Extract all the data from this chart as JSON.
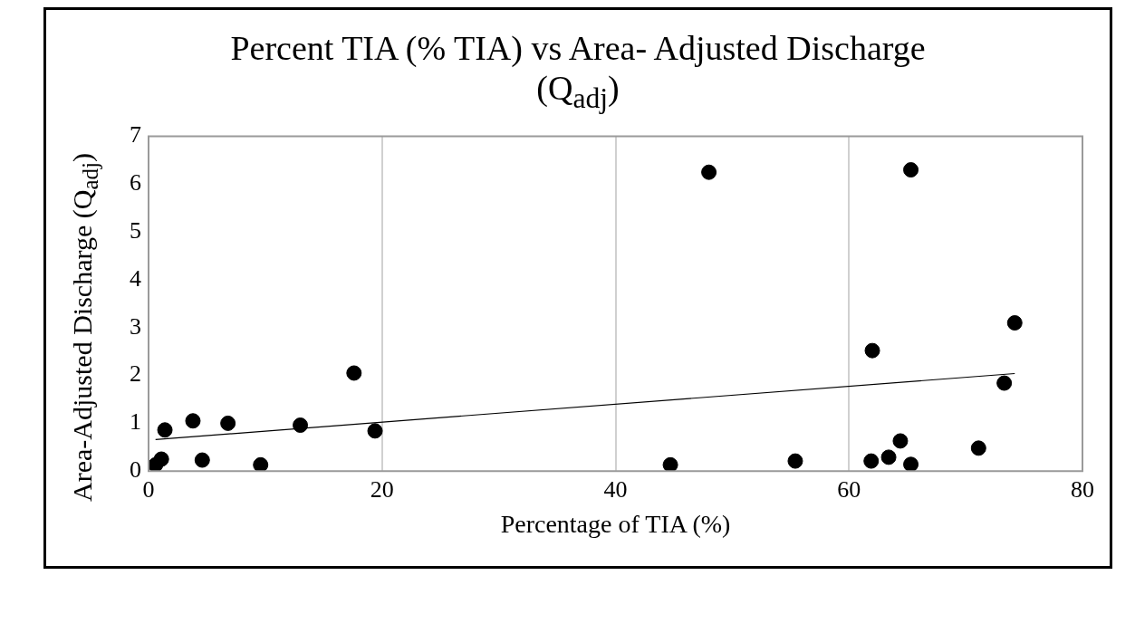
{
  "chart_data": {
    "type": "scatter",
    "title": "Percent TIA (% TIA) vs Area- Adjusted Discharge (Q$_{adj}$)",
    "xlabel": "Percentage of TIA (%)",
    "ylabel": "Area-Adjusted Discharge (Q$_{adj}$)",
    "x": [
      0.6,
      1.1,
      1.4,
      3.8,
      4.6,
      6.8,
      9.6,
      13.0,
      17.6,
      19.4,
      44.7,
      48.0,
      55.4,
      62.0,
      61.9,
      63.4,
      64.4,
      65.3,
      65.3,
      71.1,
      73.3,
      74.2
    ],
    "series": [
      {
        "color": "#000000",
        "marker": "circle",
        "values": [
          0.13,
          0.25,
          0.86,
          1.05,
          0.23,
          1.0,
          0.13,
          0.96,
          2.05,
          0.84,
          0.13,
          6.25,
          0.21,
          2.52,
          0.21,
          0.29,
          0.63,
          6.3,
          0.14,
          0.48,
          1.84,
          3.1
        ]
      },
      {
        "type": "line",
        "marker": "none",
        "color": "#000000",
        "x": [
          0.6,
          74.2
        ],
        "values": [
          0.66,
          2.04
        ]
      }
    ],
    "xlim": [
      0,
      80
    ],
    "xticks": [
      0,
      20,
      40,
      60,
      80
    ],
    "ylim": [
      0,
      7
    ],
    "yticks": [
      0,
      1,
      2,
      3,
      4,
      5,
      6,
      7
    ],
    "grid": "x",
    "legend": false
  }
}
